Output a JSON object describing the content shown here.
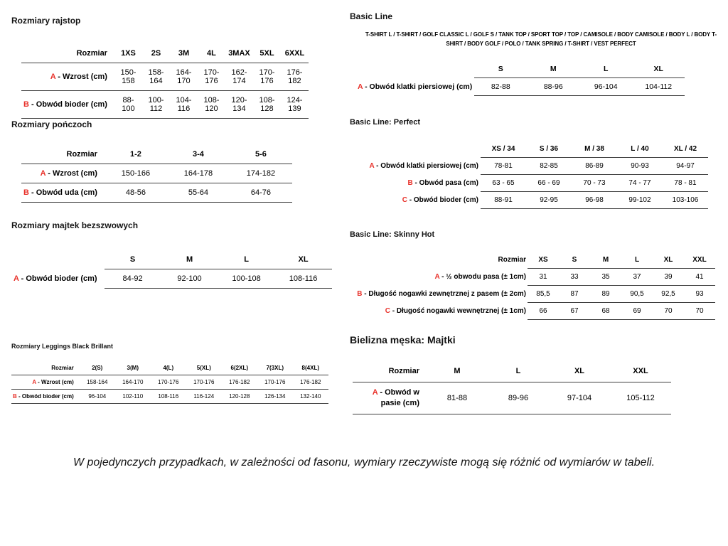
{
  "colors": {
    "accent_red": "#e8312a",
    "line": "#3f3f3f"
  },
  "label_separator": " - ",
  "footer_note": "W pojedynczych przypadkach, w zależności od fasonu, wymiary rzeczywiste mogą się różnić od wymiarów w tabeli.",
  "sections": {
    "rajstopy": {
      "title": "Rozmiary rajstop",
      "header": [
        "Rozmiar",
        "1XS",
        "2S",
        "3M",
        "4L",
        "3MAX",
        "5XL",
        "6XXL"
      ],
      "rows": [
        {
          "letter": "A",
          "label": "Wzrost (cm)",
          "values": [
            "150-158",
            "158-164",
            "164-170",
            "170-176",
            "162-174",
            "170-176",
            "176-182"
          ]
        },
        {
          "letter": "B",
          "label": "Obwód bioder (cm)",
          "values": [
            "88-100",
            "100-112",
            "104-116",
            "108-120",
            "120-134",
            "108-128",
            "124-139"
          ]
        }
      ]
    },
    "ponczochy": {
      "title": "Rozmiary pończoch",
      "header": [
        "Rozmiar",
        "1-2",
        "3-4",
        "5-6"
      ],
      "rows": [
        {
          "letter": "A",
          "label": "Wzrost (cm)",
          "values": [
            "150-166",
            "164-178",
            "174-182"
          ]
        },
        {
          "letter": "B",
          "label": "Obwód uda (cm)",
          "values": [
            "48-56",
            "55-64",
            "64-76"
          ]
        }
      ]
    },
    "majtki_bezszwowe": {
      "title": "Rozmiary majtek bezszwowych",
      "header": [
        "",
        "S",
        "M",
        "L",
        "XL"
      ],
      "rows": [
        {
          "letter": "A",
          "label": "Obwód bioder (cm)",
          "values": [
            "84-92",
            "92-100",
            "100-108",
            "108-116"
          ]
        }
      ]
    },
    "leggings": {
      "title": "Rozmiary Leggings Black Brillant",
      "header": [
        "Rozmiar",
        "2(S)",
        "3(M)",
        "4(L)",
        "5(XL)",
        "6(2XL)",
        "7(3XL)",
        "8(4XL)"
      ],
      "rows": [
        {
          "letter": "A",
          "label": "Wzrost (cm)",
          "values": [
            "158-164",
            "164-170",
            "170-176",
            "170-176",
            "176-182",
            "170-176",
            "176-182"
          ]
        },
        {
          "letter": "B",
          "label": "Obwód bioder (cm)",
          "values": [
            "96-104",
            "102-110",
            "108-116",
            "116-124",
            "120-128",
            "126-134",
            "132-140"
          ]
        }
      ]
    },
    "basic_line": {
      "title": "Basic Line",
      "subtitle": "T-SHIRT L / T-SHIRT / GOLF CLASSIC L / GOLF S / TANK TOP / SPORT TOP / TOP / CAMISOLE / BODY CAMISOLE / BODY L / BODY T-SHIRT / BODY GOLF / POLO / TANK SPRING / T-SHIRT / VEST PERFECT",
      "header": [
        "",
        "S",
        "M",
        "L",
        "XL"
      ],
      "rows": [
        {
          "letter": "A",
          "label": "Obwód klatki piersiowej (cm)",
          "values": [
            "82-88",
            "88-96",
            "96-104",
            "104-112"
          ]
        }
      ]
    },
    "basic_line_perfect": {
      "title": "Basic Line: Perfect",
      "header": [
        "",
        "XS / 34",
        "S / 36",
        "M / 38",
        "L / 40",
        "XL / 42"
      ],
      "rows": [
        {
          "letter": "A",
          "label": "Obwód klatki piersiowej (cm)",
          "values": [
            "78-81",
            "82-85",
            "86-89",
            "90-93",
            "94-97"
          ]
        },
        {
          "letter": "B",
          "label": "Obwód pasa (cm)",
          "values": [
            "63 - 65",
            "66 - 69",
            "70 - 73",
            "74 - 77",
            "78 - 81"
          ]
        },
        {
          "letter": "C",
          "label": "Obwód bioder (cm)",
          "values": [
            "88-91",
            "92-95",
            "96-98",
            "99-102",
            "103-106"
          ]
        }
      ]
    },
    "basic_line_skinny_hot": {
      "title": "Basic Line: Skinny Hot",
      "header": [
        "Rozmiar",
        "XS",
        "S",
        "M",
        "L",
        "XL",
        "XXL"
      ],
      "rows": [
        {
          "letter": "A",
          "label": "½ obwodu pasa (± 1cm)",
          "values": [
            "31",
            "33",
            "35",
            "37",
            "39",
            "41"
          ]
        },
        {
          "letter": "B",
          "label": "Długość nogawki zewnętrznej z pasem (± 2cm)",
          "values": [
            "85,5",
            "87",
            "89",
            "90,5",
            "92,5",
            "93"
          ]
        },
        {
          "letter": "C",
          "label": "Długość nogawki wewnętrznej (± 1cm)",
          "values": [
            "66",
            "67",
            "68",
            "69",
            "70",
            "70"
          ]
        }
      ]
    },
    "bielizna_meska": {
      "title": "Bielizna męska: Majtki",
      "header": [
        "Rozmiar",
        "M",
        "L",
        "XL",
        "XXL"
      ],
      "rows": [
        {
          "letter": "A",
          "label": "Obwód w pasie (cm)",
          "values": [
            "81-88",
            "89-96",
            "97-104",
            "105-112"
          ]
        }
      ]
    }
  }
}
